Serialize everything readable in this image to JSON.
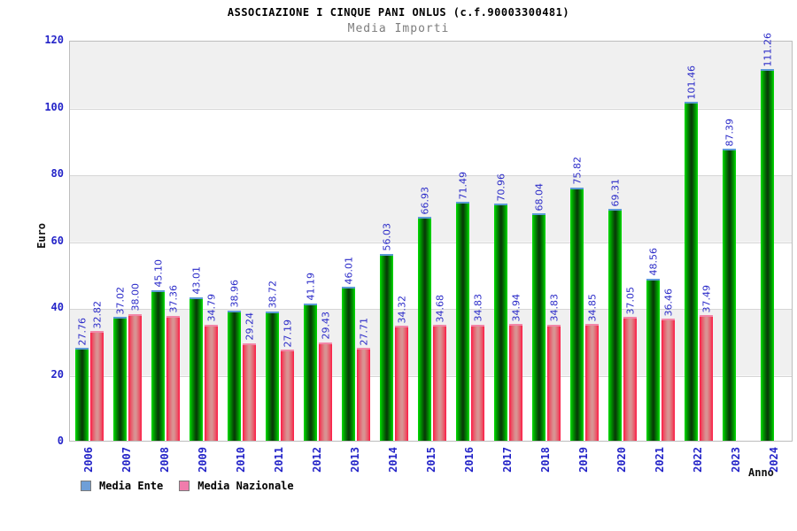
{
  "header": {
    "title": "ASSOCIAZIONE I CINQUE PANI ONLUS (c.f.90003300481)",
    "subtitle": "Media Importi"
  },
  "axes": {
    "y_label": "Euro",
    "x_label": "Anno",
    "y_ticks": [
      0,
      20,
      40,
      60,
      80,
      100,
      120
    ]
  },
  "legend": {
    "items": [
      {
        "label": "Media Ente",
        "swatch_color": "#6f9fd8"
      },
      {
        "label": "Media Nazionale",
        "swatch_color": "#f07cac"
      }
    ]
  },
  "colors": {
    "value_label_blue": "#2b2bc8",
    "axis_label_blue": "#2424c8",
    "band_gray": "#f0f0f0",
    "grid_line": "#d6d6d6",
    "green_bar_edge": "#00df00",
    "green_bar_center": "#073f07",
    "green_bar_cap": "#5b9bd5",
    "red_bar_edge": "#ff1744",
    "red_bar_center": "#d99292",
    "red_bar_cap": "#f287a8"
  },
  "chart_data": {
    "type": "bar",
    "title": "ASSOCIAZIONE I CINQUE PANI ONLUS (c.f.90003300481)",
    "subtitle": "Media Importi",
    "xlabel": "Anno",
    "ylabel": "Euro",
    "ylim": [
      0,
      120
    ],
    "grid": "horizontal lines every 20 with alternating gray/white bands",
    "legend_position": "bottom-left",
    "bar_value_labels": "rotated 90deg, blue",
    "categories": [
      "2006",
      "2007",
      "2008",
      "2009",
      "2010",
      "2011",
      "2012",
      "2013",
      "2014",
      "2015",
      "2016",
      "2017",
      "2018",
      "2019",
      "2020",
      "2021",
      "2022",
      "2023",
      "2024"
    ],
    "series": [
      {
        "name": "Media Ente",
        "color": "green",
        "values": [
          27.76,
          37.02,
          45.1,
          43.01,
          38.96,
          38.72,
          41.19,
          46.01,
          56.03,
          66.93,
          71.49,
          70.96,
          68.04,
          75.82,
          69.31,
          48.56,
          101.46,
          87.39,
          111.26
        ],
        "labels": [
          "27.76",
          "37.02",
          "45.10",
          "43.01",
          "38.96",
          "38.72",
          "41.19",
          "46.01",
          "56.03",
          "66.93",
          "71.49",
          "70.96",
          "68.04",
          "75.82",
          "69.31",
          "48.56",
          "101.46",
          "87.39",
          "111.26"
        ]
      },
      {
        "name": "Media Nazionale",
        "color": "red",
        "values": [
          32.82,
          38.0,
          37.36,
          34.79,
          29.24,
          27.19,
          29.43,
          27.71,
          34.32,
          34.68,
          34.83,
          34.94,
          34.83,
          34.85,
          37.05,
          36.46,
          37.49,
          null,
          null
        ],
        "labels": [
          "32.82",
          "38.00",
          "37.36",
          "34.79",
          "29.24",
          "27.19",
          "29.43",
          "27.71",
          "34.32",
          "34.68",
          "34.83",
          "34.94",
          "34.83",
          "34.85",
          "37.05",
          "36.46",
          "37.49",
          null,
          null
        ]
      }
    ]
  }
}
